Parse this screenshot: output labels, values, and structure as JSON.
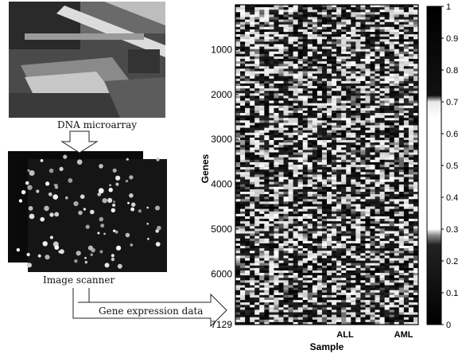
{
  "left_panel": {
    "microarray_caption": "DNA microarray",
    "scanner_caption": "Image scanner",
    "flow_label": "Gene expression data"
  },
  "chart_data": {
    "type": "heatmap",
    "title": "",
    "xlabel": "Sample",
    "ylabel": "Genes",
    "x_ticks": [
      "ALL",
      "AML"
    ],
    "y_ticks": [
      "1000",
      "2000",
      "3000",
      "4000",
      "5000",
      "6000",
      "7129"
    ],
    "ylim": [
      0,
      7129
    ],
    "colorbar": {
      "min": 0,
      "max": 1,
      "ticks": [
        "1",
        "0.9",
        "0.8",
        "0.7",
        "0.6",
        "0.5",
        "0.4",
        "0.3",
        "0.2",
        "0.1",
        "0"
      ],
      "low_color": "#000000",
      "high_color": "#ffffff"
    }
  }
}
